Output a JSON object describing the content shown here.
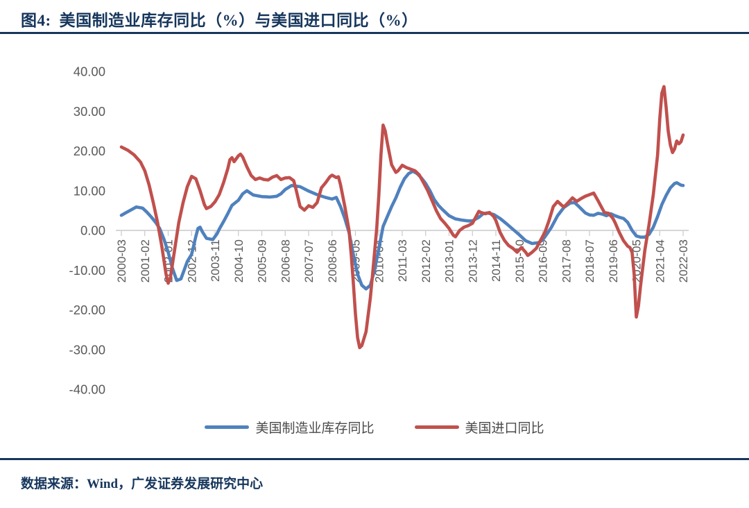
{
  "header": {
    "title_prefix": "图4:",
    "title": "美国制造业库存同比（%）与美国进口同比（%）"
  },
  "footer": {
    "source": "数据来源：Wind，广发证券发展研究中心"
  },
  "colors": {
    "accent_navy": "#16365C",
    "axis_text": "#595959",
    "axis_line": "#C8C8C8",
    "legend_text": "#4A4A4A",
    "series_blue": "#4F81BD",
    "series_red": "#C0504D"
  },
  "chart_data": {
    "type": "line",
    "title": "美国制造业库存同比（%）与美国进口同比（%）",
    "xlabel": "",
    "ylabel": "",
    "ylim": [
      -40,
      40
    ],
    "y_tick_step": 10,
    "grid": "zero-line-only",
    "legend_position": "bottom",
    "x_total_months": 264,
    "x_months_per_tick": 11,
    "x_tick_labels": [
      "2000-03",
      "2001-02",
      "2002-01",
      "2002-12",
      "2003-11",
      "2004-10",
      "2005-09",
      "2006-08",
      "2007-07",
      "2008-06",
      "2009-05",
      "2010-04",
      "2011-03",
      "2012-02",
      "2013-01",
      "2013-12",
      "2014-11",
      "2015-10",
      "2016-09",
      "2017-08",
      "2018-07",
      "2019-06",
      "2020-05",
      "2021-04",
      "2022-03"
    ],
    "y_tick_labels": [
      "40.00",
      "30.00",
      "20.00",
      "10.00",
      "0.00",
      "-10.00",
      "-20.00",
      "-30.00",
      "-40.00"
    ],
    "series": [
      {
        "name": "美国制造业库存同比",
        "color": "#4F81BD",
        "points": [
          [
            0,
            3.8
          ],
          [
            2,
            4.4
          ],
          [
            4,
            5.0
          ],
          [
            7,
            5.9
          ],
          [
            10,
            5.6
          ],
          [
            12,
            4.6
          ],
          [
            14,
            3.4
          ],
          [
            16,
            2.1
          ],
          [
            18,
            0.5
          ],
          [
            20,
            -2.2
          ],
          [
            22,
            -5.5
          ],
          [
            24,
            -9.5
          ],
          [
            26,
            -12.6
          ],
          [
            28,
            -12.2
          ],
          [
            31,
            -7.8
          ],
          [
            33,
            -6.0
          ],
          [
            35,
            -1.5
          ],
          [
            36,
            0.5
          ],
          [
            37,
            0.8
          ],
          [
            38,
            -0.3
          ],
          [
            40,
            -2.0
          ],
          [
            43,
            -2.3
          ],
          [
            45,
            -0.8
          ],
          [
            46,
            0.3
          ],
          [
            48,
            2.2
          ],
          [
            50,
            4.2
          ],
          [
            52,
            6.3
          ],
          [
            55,
            7.6
          ],
          [
            57,
            9.2
          ],
          [
            59,
            10.0
          ],
          [
            62,
            8.9
          ],
          [
            66,
            8.5
          ],
          [
            70,
            8.4
          ],
          [
            73,
            8.6
          ],
          [
            75,
            9.2
          ],
          [
            77,
            10.3
          ],
          [
            80,
            11.3
          ],
          [
            84,
            11.0
          ],
          [
            88,
            9.9
          ],
          [
            92,
            9.0
          ],
          [
            96,
            8.3
          ],
          [
            99,
            7.9
          ],
          [
            101,
            8.3
          ],
          [
            103,
            6.0
          ],
          [
            105,
            3.0
          ],
          [
            107,
            -0.5
          ],
          [
            109,
            -6.0
          ],
          [
            111,
            -11.0
          ],
          [
            113,
            -13.8
          ],
          [
            115,
            -14.7
          ],
          [
            117,
            -13.8
          ],
          [
            119,
            -10.0
          ],
          [
            121,
            -4.5
          ],
          [
            123,
            1.0
          ],
          [
            125,
            3.5
          ],
          [
            127,
            6.0
          ],
          [
            129,
            8.2
          ],
          [
            131,
            10.8
          ],
          [
            133,
            13.0
          ],
          [
            135,
            14.3
          ],
          [
            137,
            14.9
          ],
          [
            139,
            14.3
          ],
          [
            141,
            13.2
          ],
          [
            143,
            11.8
          ],
          [
            145,
            10.0
          ],
          [
            147,
            7.8
          ],
          [
            149,
            6.3
          ],
          [
            151,
            5.2
          ],
          [
            154,
            3.7
          ],
          [
            157,
            2.9
          ],
          [
            160,
            2.6
          ],
          [
            163,
            2.4
          ],
          [
            165,
            2.4
          ],
          [
            168,
            3.3
          ],
          [
            170,
            4.2
          ],
          [
            172,
            4.4
          ],
          [
            175,
            4.0
          ],
          [
            178,
            3.0
          ],
          [
            181,
            1.7
          ],
          [
            184,
            0.3
          ],
          [
            187,
            -1.1
          ],
          [
            190,
            -2.6
          ],
          [
            193,
            -3.3
          ],
          [
            196,
            -3.1
          ],
          [
            198,
            -2.4
          ],
          [
            200,
            -0.9
          ],
          [
            202,
            0.7
          ],
          [
            205,
            3.7
          ],
          [
            208,
            5.8
          ],
          [
            211,
            6.9
          ],
          [
            213,
            7.0
          ],
          [
            215,
            6.0
          ],
          [
            218,
            4.4
          ],
          [
            220,
            3.9
          ],
          [
            222,
            3.8
          ],
          [
            224,
            4.3
          ],
          [
            226,
            4.1
          ],
          [
            228,
            3.7
          ],
          [
            230,
            4.2
          ],
          [
            232,
            3.7
          ],
          [
            234,
            3.3
          ],
          [
            236,
            3.0
          ],
          [
            238,
            2.0
          ],
          [
            240,
            0.0
          ],
          [
            242,
            -1.4
          ],
          [
            244,
            -1.7
          ],
          [
            246,
            -1.7
          ],
          [
            248,
            -1.0
          ],
          [
            250,
            0.8
          ],
          [
            252,
            3.5
          ],
          [
            254,
            6.5
          ],
          [
            256,
            8.8
          ],
          [
            258,
            10.7
          ],
          [
            260,
            11.8
          ],
          [
            261,
            12.0
          ],
          [
            263,
            11.4
          ],
          [
            264,
            11.3
          ]
        ]
      },
      {
        "name": "美国进口同比",
        "color": "#C0504D",
        "points": [
          [
            0,
            21.0
          ],
          [
            3,
            20.2
          ],
          [
            6,
            19.0
          ],
          [
            9,
            17.2
          ],
          [
            11,
            15.0
          ],
          [
            13,
            11.5
          ],
          [
            15,
            7.0
          ],
          [
            17,
            2.0
          ],
          [
            19,
            -4.0
          ],
          [
            21,
            -11.0
          ],
          [
            22,
            -13.3
          ],
          [
            23,
            -12.0
          ],
          [
            25,
            -5.0
          ],
          [
            27,
            2.0
          ],
          [
            29,
            7.0
          ],
          [
            31,
            11.0
          ],
          [
            33,
            13.6
          ],
          [
            35,
            13.0
          ],
          [
            37,
            10.0
          ],
          [
            39,
            6.5
          ],
          [
            40,
            5.5
          ],
          [
            42,
            6.0
          ],
          [
            44,
            7.2
          ],
          [
            46,
            9.0
          ],
          [
            48,
            12.0
          ],
          [
            50,
            15.5
          ],
          [
            51,
            17.8
          ],
          [
            52,
            18.3
          ],
          [
            53,
            17.3
          ],
          [
            55,
            18.8
          ],
          [
            56,
            19.2
          ],
          [
            57,
            18.5
          ],
          [
            59,
            16.0
          ],
          [
            61,
            13.8
          ],
          [
            63,
            12.8
          ],
          [
            65,
            13.2
          ],
          [
            67,
            12.8
          ],
          [
            69,
            12.7
          ],
          [
            71,
            13.4
          ],
          [
            73,
            13.8
          ],
          [
            75,
            12.8
          ],
          [
            77,
            13.2
          ],
          [
            79,
            13.3
          ],
          [
            81,
            12.5
          ],
          [
            82,
            10.5
          ],
          [
            84,
            6.0
          ],
          [
            86,
            5.1
          ],
          [
            88,
            6.2
          ],
          [
            90,
            5.8
          ],
          [
            92,
            7.0
          ],
          [
            94,
            10.7
          ],
          [
            96,
            12.0
          ],
          [
            98,
            13.5
          ],
          [
            99,
            13.9
          ],
          [
            101,
            13.3
          ],
          [
            102,
            13.5
          ],
          [
            103,
            11.5
          ],
          [
            105,
            6.0
          ],
          [
            107,
            0.0
          ],
          [
            108,
            -6.0
          ],
          [
            109,
            -13.0
          ],
          [
            110,
            -21.0
          ],
          [
            111,
            -27.0
          ],
          [
            112,
            -29.5
          ],
          [
            113,
            -29.0
          ],
          [
            115,
            -25.5
          ],
          [
            117,
            -17.0
          ],
          [
            118,
            -11.5
          ],
          [
            119,
            -5.5
          ],
          [
            120,
            0.5
          ],
          [
            121,
            9.0
          ],
          [
            122,
            19.0
          ],
          [
            123,
            26.5
          ],
          [
            124,
            25.0
          ],
          [
            125,
            22.0
          ],
          [
            127,
            16.5
          ],
          [
            129,
            14.6
          ],
          [
            130,
            15.0
          ],
          [
            132,
            16.4
          ],
          [
            134,
            15.8
          ],
          [
            136,
            15.4
          ],
          [
            138,
            15.0
          ],
          [
            140,
            14.0
          ],
          [
            142,
            12.0
          ],
          [
            144,
            10.0
          ],
          [
            146,
            7.5
          ],
          [
            148,
            5.0
          ],
          [
            150,
            3.0
          ],
          [
            152,
            1.8
          ],
          [
            154,
            0.5
          ],
          [
            156,
            -1.2
          ],
          [
            157,
            -1.6
          ],
          [
            159,
            0.0
          ],
          [
            161,
            0.8
          ],
          [
            163,
            1.2
          ],
          [
            165,
            1.8
          ],
          [
            167,
            3.8
          ],
          [
            168,
            4.8
          ],
          [
            169,
            4.5
          ],
          [
            171,
            4.2
          ],
          [
            173,
            4.5
          ],
          [
            175,
            3.5
          ],
          [
            176,
            2.5
          ],
          [
            178,
            -0.5
          ],
          [
            180,
            -2.5
          ],
          [
            182,
            -3.8
          ],
          [
            184,
            -4.5
          ],
          [
            186,
            -5.5
          ],
          [
            188,
            -4.3
          ],
          [
            190,
            -5.5
          ],
          [
            191,
            -6.3
          ],
          [
            193,
            -5.5
          ],
          [
            195,
            -4.5
          ],
          [
            197,
            -2.5
          ],
          [
            199,
            -0.5
          ],
          [
            201,
            2.5
          ],
          [
            203,
            6.0
          ],
          [
            205,
            7.3
          ],
          [
            207,
            6.3
          ],
          [
            208,
            5.9
          ],
          [
            210,
            7.0
          ],
          [
            212,
            8.2
          ],
          [
            214,
            7.3
          ],
          [
            216,
            8.0
          ],
          [
            218,
            8.6
          ],
          [
            220,
            9.0
          ],
          [
            222,
            9.4
          ],
          [
            224,
            7.5
          ],
          [
            225,
            6.5
          ],
          [
            227,
            4.5
          ],
          [
            229,
            4.3
          ],
          [
            231,
            3.0
          ],
          [
            232,
            2.0
          ],
          [
            234,
            -0.5
          ],
          [
            236,
            -2.6
          ],
          [
            238,
            -4.0
          ],
          [
            239,
            -4.3
          ],
          [
            240,
            -5.5
          ],
          [
            241,
            -11.0
          ],
          [
            242,
            -21.8
          ],
          [
            243,
            -19.0
          ],
          [
            244,
            -14.0
          ],
          [
            246,
            -5.0
          ],
          [
            248,
            1.5
          ],
          [
            250,
            9.0
          ],
          [
            252,
            19.0
          ],
          [
            253,
            28.0
          ],
          [
            254,
            34.5
          ],
          [
            255,
            36.2
          ],
          [
            256,
            31.0
          ],
          [
            257,
            25.0
          ],
          [
            258,
            21.5
          ],
          [
            259,
            19.6
          ],
          [
            260,
            20.5
          ],
          [
            261,
            22.5
          ],
          [
            262,
            21.8
          ],
          [
            263,
            22.3
          ],
          [
            264,
            24.0
          ]
        ]
      }
    ]
  }
}
